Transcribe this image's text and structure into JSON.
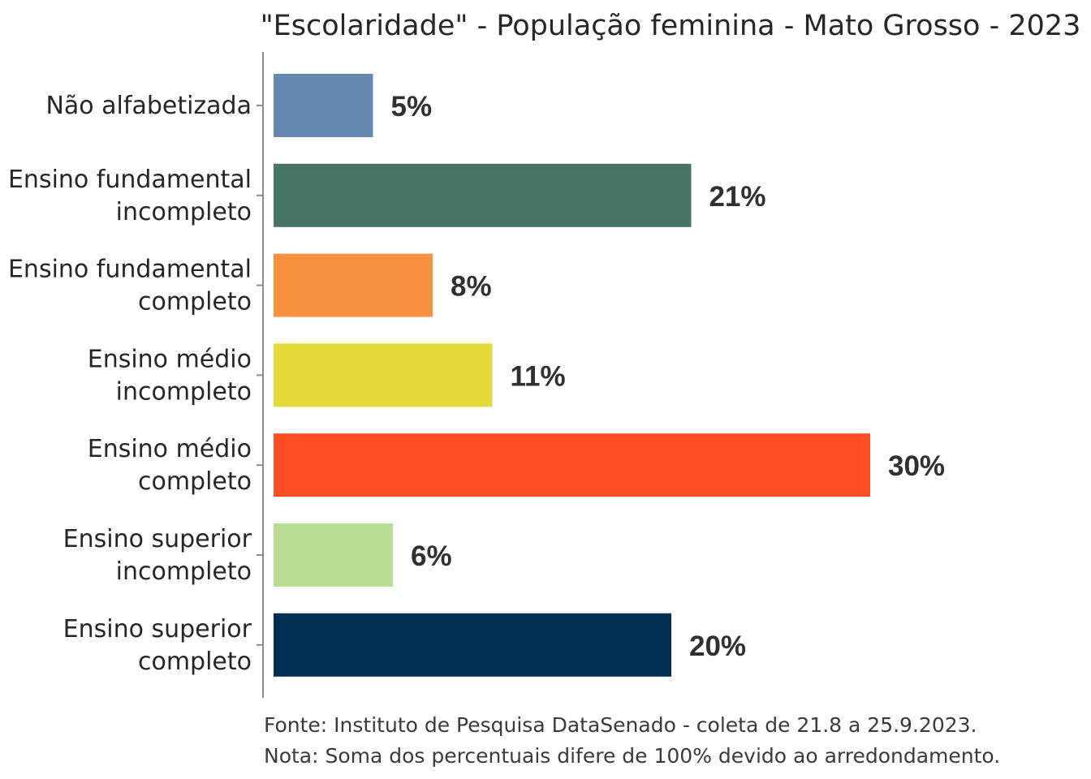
{
  "chart_data": {
    "type": "bar",
    "orientation": "horizontal",
    "title": "\"Escolaridade\" - População feminina - Mato Grosso - 2023",
    "categories": [
      [
        "Não alfabetizada"
      ],
      [
        "Ensino fundamental",
        "incompleto"
      ],
      [
        "Ensino fundamental",
        "completo"
      ],
      [
        "Ensino médio",
        "incompleto"
      ],
      [
        "Ensino médio",
        "completo"
      ],
      [
        "Ensino superior",
        "incompleto"
      ],
      [
        "Ensino superior",
        "completo"
      ]
    ],
    "values": [
      5,
      21,
      8,
      11,
      30,
      6,
      20
    ],
    "value_labels": [
      "5%",
      "21%",
      "8%",
      "11%",
      "30%",
      "6%",
      "20%"
    ],
    "colors": [
      "#6689B0",
      "#467562",
      "#F9923E",
      "#E3D937",
      "#FE4C23",
      "#B8DC90",
      "#012E53"
    ],
    "xlim": [
      0,
      30
    ],
    "xlabel": "",
    "ylabel": "",
    "grid": false,
    "notes": [
      "Fonte: Instituto de Pesquisa DataSenado - coleta de 21.8 a 25.9.2023.",
      "Nota: Soma dos percentuais difere de 100% devido ao arredondamento."
    ]
  }
}
